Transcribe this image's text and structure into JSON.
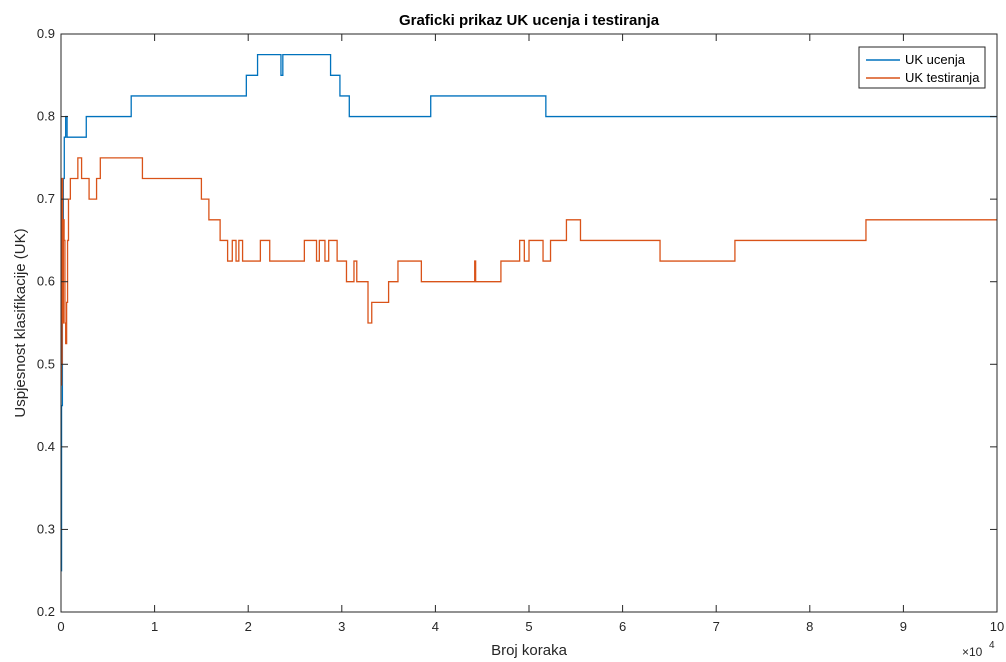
{
  "chart_data": {
    "type": "line",
    "title": "Graficki prikaz UK ucenja i testiranja",
    "xlabel": "Broj koraka",
    "ylabel": "Uspjesnost klasifikacije (UK)",
    "x_multiplier": "×10",
    "x_multiplier_exp": "4",
    "xlim": [
      0,
      100000
    ],
    "ylim": [
      0.2,
      0.9
    ],
    "x_ticks": [
      0,
      10000,
      20000,
      30000,
      40000,
      50000,
      60000,
      70000,
      80000,
      90000,
      100000
    ],
    "x_tick_labels": [
      "0",
      "1",
      "2",
      "3",
      "4",
      "5",
      "6",
      "7",
      "8",
      "9",
      "10"
    ],
    "y_ticks": [
      0.2,
      0.3,
      0.4,
      0.5,
      0.6,
      0.7,
      0.8,
      0.9
    ],
    "y_tick_labels": [
      "0.2",
      "0.3",
      "0.4",
      "0.5",
      "0.6",
      "0.7",
      "0.8",
      "0.9"
    ],
    "legend_position": "top-right",
    "series": [
      {
        "name": "UK ucenja",
        "color": "#0072BD",
        "step": true,
        "points": [
          [
            0,
            0.25
          ],
          [
            60,
            0.45
          ],
          [
            150,
            0.6
          ],
          [
            250,
            0.725
          ],
          [
            350,
            0.775
          ],
          [
            500,
            0.8
          ],
          [
            650,
            0.775
          ],
          [
            2700,
            0.8
          ],
          [
            7500,
            0.825
          ],
          [
            19800,
            0.85
          ],
          [
            21000,
            0.875
          ],
          [
            23500,
            0.85
          ],
          [
            23700,
            0.875
          ],
          [
            28800,
            0.85
          ],
          [
            29800,
            0.825
          ],
          [
            30800,
            0.8
          ],
          [
            39500,
            0.825
          ],
          [
            51800,
            0.8
          ],
          [
            100000,
            0.8
          ]
        ]
      },
      {
        "name": "UK testiranja",
        "color": "#D95319",
        "step": true,
        "points": [
          [
            0,
            0.475
          ],
          [
            60,
            0.5
          ],
          [
            120,
            0.725
          ],
          [
            180,
            0.55
          ],
          [
            250,
            0.675
          ],
          [
            330,
            0.65
          ],
          [
            420,
            0.55
          ],
          [
            500,
            0.525
          ],
          [
            600,
            0.575
          ],
          [
            700,
            0.65
          ],
          [
            800,
            0.7
          ],
          [
            1000,
            0.725
          ],
          [
            1800,
            0.75
          ],
          [
            2200,
            0.725
          ],
          [
            3000,
            0.7
          ],
          [
            3800,
            0.725
          ],
          [
            4200,
            0.75
          ],
          [
            8700,
            0.725
          ],
          [
            15000,
            0.7
          ],
          [
            15800,
            0.675
          ],
          [
            17000,
            0.65
          ],
          [
            17800,
            0.625
          ],
          [
            18300,
            0.65
          ],
          [
            18700,
            0.625
          ],
          [
            19000,
            0.65
          ],
          [
            19400,
            0.625
          ],
          [
            21300,
            0.65
          ],
          [
            22300,
            0.625
          ],
          [
            26000,
            0.65
          ],
          [
            27300,
            0.625
          ],
          [
            27600,
            0.65
          ],
          [
            28200,
            0.625
          ],
          [
            28600,
            0.65
          ],
          [
            29500,
            0.625
          ],
          [
            30500,
            0.6
          ],
          [
            31300,
            0.625
          ],
          [
            31600,
            0.6
          ],
          [
            32800,
            0.55
          ],
          [
            33200,
            0.575
          ],
          [
            35000,
            0.6
          ],
          [
            36000,
            0.625
          ],
          [
            38500,
            0.6
          ],
          [
            44200,
            0.625
          ],
          [
            44300,
            0.6
          ],
          [
            47000,
            0.625
          ],
          [
            49000,
            0.65
          ],
          [
            49500,
            0.625
          ],
          [
            50000,
            0.65
          ],
          [
            51500,
            0.625
          ],
          [
            52300,
            0.65
          ],
          [
            54000,
            0.675
          ],
          [
            55500,
            0.65
          ],
          [
            64000,
            0.625
          ],
          [
            72000,
            0.65
          ],
          [
            86000,
            0.675
          ],
          [
            100000,
            0.675
          ]
        ]
      }
    ]
  }
}
